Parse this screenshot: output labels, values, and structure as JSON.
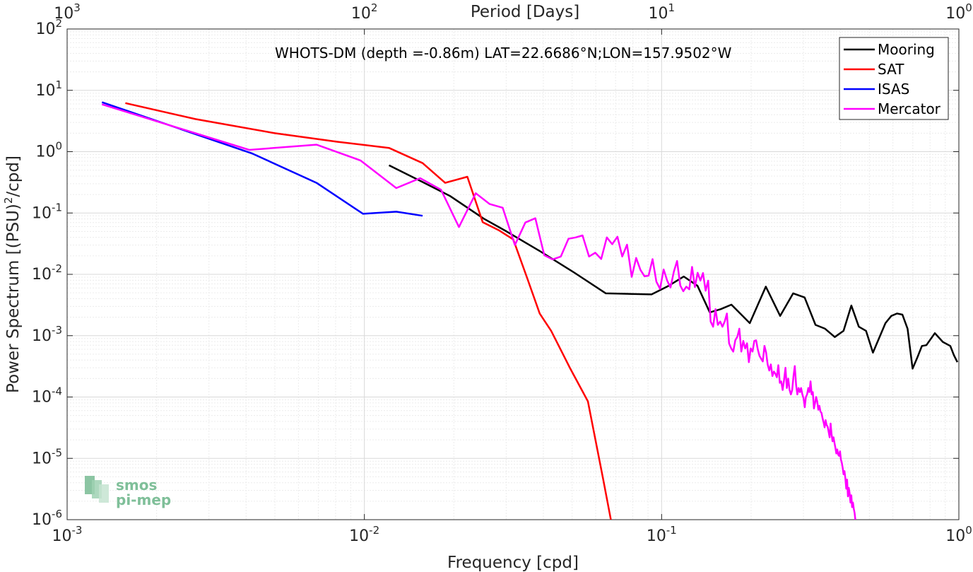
{
  "chart_data": {
    "type": "line",
    "annotation": "WHOTS-DM (depth =-0.86m) LAT=22.6686°N;LON=157.9502°W",
    "xlabel": "Frequency [cpd]",
    "ylabel": "Power Spectrum [(PSU)²/cpd]",
    "ylabel_main": "Power Spectrum [(PSU)",
    "ylabel_sup": "2",
    "ylabel_tail": "/cpd]",
    "top_axis_label": "Period [Days]",
    "xscale": "log",
    "yscale": "log",
    "xlim": [
      0.001,
      1
    ],
    "ylim": [
      1e-06,
      100
    ],
    "grid": true,
    "legend_position": "top-right",
    "x_ticks": [
      {
        "base": "10",
        "exp": "-3"
      },
      {
        "base": "10",
        "exp": "-2"
      },
      {
        "base": "10",
        "exp": "-1"
      },
      {
        "base": "10",
        "exp": "0"
      }
    ],
    "y_ticks": [
      {
        "base": "10",
        "exp": "-6"
      },
      {
        "base": "10",
        "exp": "-5"
      },
      {
        "base": "10",
        "exp": "-4"
      },
      {
        "base": "10",
        "exp": "-3"
      },
      {
        "base": "10",
        "exp": "-2"
      },
      {
        "base": "10",
        "exp": "-1"
      },
      {
        "base": "10",
        "exp": "0"
      },
      {
        "base": "10",
        "exp": "1"
      },
      {
        "base": "10",
        "exp": "2"
      }
    ],
    "top_ticks": [
      {
        "base": "10",
        "exp": "3"
      },
      {
        "base": "10",
        "exp": "2"
      },
      {
        "base": "10",
        "exp": "1"
      },
      {
        "base": "10",
        "exp": "0"
      }
    ],
    "series": [
      {
        "name": "Mooring",
        "color": "#000000",
        "points": [
          [
            0.0121,
            0.6
          ],
          [
            0.0155,
            0.33
          ],
          [
            0.0194,
            0.19
          ],
          [
            0.0252,
            0.081
          ],
          [
            0.0301,
            0.05
          ],
          [
            0.0389,
            0.024
          ],
          [
            0.0508,
            0.0107
          ],
          [
            0.0649,
            0.0049
          ],
          [
            0.0793,
            0.0048
          ],
          [
            0.0925,
            0.0047
          ],
          [
            0.1056,
            0.0065
          ],
          [
            0.1187,
            0.0092
          ],
          [
            0.132,
            0.0065
          ],
          [
            0.1452,
            0.0024
          ],
          [
            0.1579,
            0.0027
          ],
          [
            0.1717,
            0.0032
          ],
          [
            0.198,
            0.0016
          ],
          [
            0.2241,
            0.0063
          ],
          [
            0.2505,
            0.0021
          ],
          [
            0.277,
            0.0049
          ],
          [
            0.3027,
            0.0042
          ],
          [
            0.3293,
            0.0015
          ],
          [
            0.3547,
            0.0013
          ],
          [
            0.3824,
            0.00095
          ],
          [
            0.4092,
            0.0012
          ],
          [
            0.4347,
            0.0031
          ],
          [
            0.4606,
            0.0014
          ],
          [
            0.4872,
            0.0012
          ],
          [
            0.5139,
            0.00053
          ],
          [
            0.5662,
            0.0016
          ],
          [
            0.5927,
            0.0021
          ],
          [
            0.6196,
            0.0023
          ],
          [
            0.6457,
            0.0022
          ],
          [
            0.6721,
            0.0013
          ],
          [
            0.6986,
            0.00029
          ],
          [
            0.7249,
            0.00044
          ],
          [
            0.7511,
            0.00068
          ],
          [
            0.7773,
            0.0007
          ],
          [
            0.8303,
            0.0011
          ],
          [
            0.8831,
            0.00079
          ],
          [
            0.9357,
            0.00068
          ],
          [
            0.9624,
            0.00048
          ],
          [
            0.9887,
            0.00037
          ]
        ]
      },
      {
        "name": "SAT",
        "color": "#ff0000",
        "points": [
          [
            0.00157,
            6.2
          ],
          [
            0.0027,
            3.4
          ],
          [
            0.005,
            2.0
          ],
          [
            0.0081,
            1.45
          ],
          [
            0.0121,
            1.15
          ],
          [
            0.0157,
            0.65
          ],
          [
            0.0187,
            0.31
          ],
          [
            0.0222,
            0.39
          ],
          [
            0.025,
            0.071
          ],
          [
            0.0284,
            0.052
          ],
          [
            0.0317,
            0.037
          ],
          [
            0.0352,
            0.009
          ],
          [
            0.0389,
            0.0023
          ],
          [
            0.0425,
            0.0012
          ],
          [
            0.0493,
            0.00029
          ],
          [
            0.0565,
            8.5e-05
          ],
          [
            0.0636,
            4.5e-06
          ],
          [
            0.0675,
            1e-06
          ]
        ]
      },
      {
        "name": "ISAS",
        "color": "#0000ff",
        "points": [
          [
            0.00131,
            6.4
          ],
          [
            0.0042,
            0.93
          ],
          [
            0.0069,
            0.31
          ],
          [
            0.0099,
            0.097
          ],
          [
            0.0128,
            0.105
          ],
          [
            0.0157,
            0.09
          ]
        ]
      },
      {
        "name": "Mercator",
        "color": "#ff00ff",
        "points": [
          [
            0.00131,
            5.9
          ],
          [
            0.0041,
            1.07
          ],
          [
            0.0069,
            1.3
          ],
          [
            0.0097,
            0.72
          ],
          [
            0.0128,
            0.255
          ],
          [
            0.0154,
            0.37
          ],
          [
            0.0181,
            0.24
          ],
          [
            0.0208,
            0.059
          ],
          [
            0.0237,
            0.21
          ],
          [
            0.0264,
            0.14
          ],
          [
            0.0292,
            0.122
          ],
          [
            0.0321,
            0.03
          ],
          [
            0.0348,
            0.07
          ],
          [
            0.0376,
            0.082
          ],
          [
            0.0403,
            0.0205
          ],
          [
            0.043,
            0.0175
          ],
          [
            0.0458,
            0.0195
          ],
          [
            0.0486,
            0.038
          ],
          [
            0.0514,
            0.04
          ],
          [
            0.0542,
            0.043
          ],
          [
            0.057,
            0.0195
          ],
          [
            0.0598,
            0.0225
          ],
          [
            0.0626,
            0.0178
          ],
          [
            0.0654,
            0.04
          ],
          [
            0.0682,
            0.031
          ],
          [
            0.071,
            0.041
          ],
          [
            0.0737,
            0.0195
          ],
          [
            0.0765,
            0.0305
          ],
          [
            0.0793,
            0.0091
          ],
          [
            0.0821,
            0.0185
          ],
          [
            0.0849,
            0.0118
          ],
          [
            0.0876,
            0.0093
          ],
          [
            0.0904,
            0.0095
          ],
          [
            0.0932,
            0.0177
          ],
          [
            0.096,
            0.0076
          ],
          [
            0.0988,
            0.0058
          ],
          [
            0.1016,
            0.012
          ],
          [
            0.1044,
            0.0079
          ],
          [
            0.1071,
            0.0061
          ],
          [
            0.1099,
            0.011
          ],
          [
            0.1127,
            0.0165
          ],
          [
            0.1155,
            0.0066
          ],
          [
            0.1183,
            0.0053
          ],
          [
            0.1211,
            0.0063
          ],
          [
            0.1239,
            0.0057
          ],
          [
            0.1266,
            0.0132
          ],
          [
            0.1294,
            0.0062
          ],
          [
            0.1322,
            0.0106
          ],
          [
            0.135,
            0.0079
          ],
          [
            0.1378,
            0.0105
          ],
          [
            0.1406,
            0.0054
          ],
          [
            0.1434,
            0.0079
          ],
          [
            0.1462,
            0.0017
          ],
          [
            0.149,
            0.0014
          ],
          [
            0.1518,
            0.0027
          ],
          [
            0.1546,
            0.0015
          ],
          [
            0.1574,
            0.0017
          ],
          [
            0.1602,
            0.0014
          ],
          [
            0.163,
            0.0017
          ],
          [
            0.1658,
            0.0023
          ],
          [
            0.1686,
            0.00075
          ],
          [
            0.1714,
            0.00062
          ],
          [
            0.1742,
            0.00055
          ],
          [
            0.177,
            0.00084
          ],
          [
            0.1798,
            0.00096
          ],
          [
            0.1826,
            0.0013
          ],
          [
            0.1854,
            0.00055
          ],
          [
            0.1882,
            0.00082
          ],
          [
            0.191,
            0.00062
          ],
          [
            0.1938,
            0.00075
          ],
          [
            0.1966,
            0.00037
          ],
          [
            0.1994,
            0.00062
          ],
          [
            0.2022,
            0.00055
          ],
          [
            0.205,
            0.00082
          ],
          [
            0.2078,
            0.00084
          ],
          [
            0.2106,
            0.0006
          ],
          [
            0.2134,
            0.00047
          ],
          [
            0.2162,
            0.00042
          ],
          [
            0.219,
            0.00038
          ],
          [
            0.2218,
            0.00068
          ],
          [
            0.2246,
            0.00053
          ],
          [
            0.2274,
            0.00034
          ],
          [
            0.2302,
            0.00027
          ],
          [
            0.233,
            0.00034
          ],
          [
            0.2358,
            0.00022
          ],
          [
            0.2386,
            0.00026
          ],
          [
            0.2414,
            0.00024
          ],
          [
            0.2442,
            0.00021
          ],
          [
            0.247,
            0.00033
          ],
          [
            0.2498,
            0.00017
          ],
          [
            0.2526,
            0.00018
          ],
          [
            0.2554,
            0.00013
          ],
          [
            0.2582,
            0.00019
          ],
          [
            0.261,
            0.0003
          ],
          [
            0.2638,
            0.00014
          ],
          [
            0.2666,
            0.0002
          ],
          [
            0.2694,
            0.00013
          ],
          [
            0.2722,
            0.00011
          ],
          [
            0.275,
            0.00013
          ],
          [
            0.2778,
            0.00022
          ],
          [
            0.2806,
            0.00032
          ],
          [
            0.2834,
            0.00016
          ],
          [
            0.2862,
            0.00011
          ],
          [
            0.289,
            0.00014
          ],
          [
            0.2918,
            0.00012
          ],
          [
            0.2946,
            0.00014
          ],
          [
            0.2974,
            0.00011
          ],
          [
            0.3002,
            9.5e-05
          ],
          [
            0.303,
            6.8e-05
          ],
          [
            0.3058,
            0.0001
          ],
          [
            0.3086,
            0.00011
          ],
          [
            0.3114,
            0.00014
          ],
          [
            0.3142,
            0.00012
          ],
          [
            0.317,
            0.00018
          ],
          [
            0.3198,
            0.00011
          ],
          [
            0.3226,
            0.00012
          ],
          [
            0.3254,
            6.5e-05
          ],
          [
            0.3282,
            8e-05
          ],
          [
            0.331,
            0.0001
          ],
          [
            0.3338,
            8.5e-05
          ],
          [
            0.3366,
            6.2e-05
          ],
          [
            0.3394,
            7.2e-05
          ],
          [
            0.3422,
            5.8e-05
          ],
          [
            0.345,
            5.5e-05
          ],
          [
            0.3478,
            4.5e-05
          ],
          [
            0.3506,
            3.9e-05
          ],
          [
            0.3534,
            3.2e-05
          ],
          [
            0.3562,
            4.2e-05
          ],
          [
            0.359,
            3.5e-05
          ],
          [
            0.3618,
            3.3e-05
          ],
          [
            0.3646,
            2.7e-05
          ],
          [
            0.3674,
            2.2e-05
          ],
          [
            0.3702,
            3.7e-05
          ],
          [
            0.373,
            2.5e-05
          ],
          [
            0.3758,
            1.9e-05
          ],
          [
            0.3786,
            2.2e-05
          ],
          [
            0.3814,
            1.8e-05
          ],
          [
            0.3842,
            1.5e-05
          ],
          [
            0.387,
            1.2e-05
          ],
          [
            0.3898,
            1.4e-05
          ],
          [
            0.3926,
            1.15e-05
          ],
          [
            0.3954,
            1.1e-05
          ],
          [
            0.3982,
            1.3e-05
          ],
          [
            0.401,
            9.5e-06
          ],
          [
            0.4038,
            8.5e-06
          ],
          [
            0.4066,
            7e-06
          ],
          [
            0.4094,
            5.5e-06
          ],
          [
            0.4122,
            6.2e-06
          ],
          [
            0.415,
            4.8e-06
          ],
          [
            0.4178,
            3.2e-06
          ],
          [
            0.4206,
            4.5e-06
          ],
          [
            0.4234,
            2.4e-06
          ],
          [
            0.4262,
            3.3e-06
          ],
          [
            0.429,
            2.7e-06
          ],
          [
            0.4318,
            1.9e-06
          ],
          [
            0.4346,
            2.5e-06
          ],
          [
            0.4374,
            1.6e-06
          ],
          [
            0.4402,
            1.9e-06
          ],
          [
            0.443,
            1.5e-06
          ],
          [
            0.4458,
            1.3e-06
          ],
          [
            0.4486,
            1e-06
          ]
        ]
      }
    ]
  },
  "logo": {
    "line1": "smos",
    "line2": "pi-mep"
  }
}
